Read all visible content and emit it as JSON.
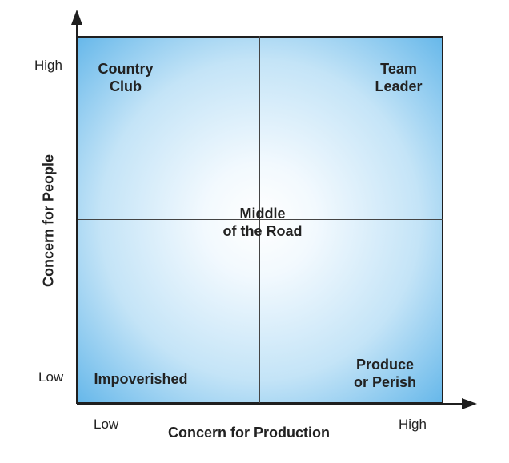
{
  "quadrants": {
    "top_left": "Country\nClub",
    "top_right": "Team\nLeader",
    "center": "Middle\nof the Road",
    "bottom_left": "Impoverished",
    "bottom_right": "Produce\nor Perish"
  },
  "y_axis": {
    "title": "Concern for People",
    "high": "High",
    "low": "Low"
  },
  "x_axis": {
    "title": "Concern for Production",
    "low": "Low",
    "high": "High"
  },
  "colors": {
    "gradient_center": "#ffffff",
    "gradient_edge": "#67b8ea",
    "lines": "#1f1f1f"
  }
}
